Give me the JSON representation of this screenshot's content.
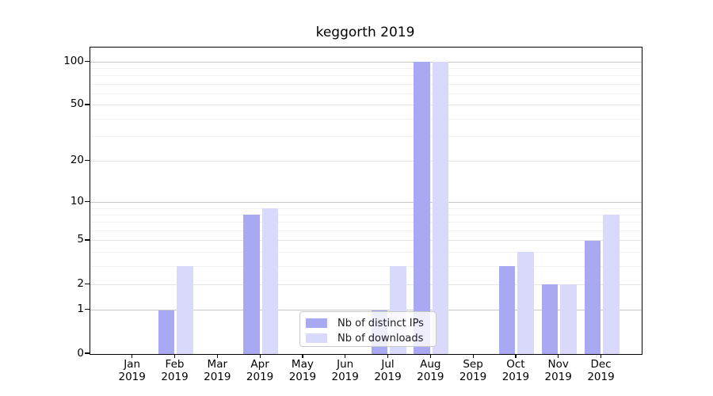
{
  "chart_data": {
    "type": "bar",
    "title": "keggorth 2019",
    "categories": [
      "Jan 2019",
      "Feb 2019",
      "Mar 2019",
      "Apr 2019",
      "May 2019",
      "Jun 2019",
      "Jul 2019",
      "Aug 2019",
      "Sep 2019",
      "Oct 2019",
      "Nov 2019",
      "Dec 2019"
    ],
    "series": [
      {
        "name": "Nb of distinct IPs",
        "color": "#a8a8f3",
        "values": [
          0,
          1,
          0,
          8,
          0,
          0,
          1,
          100,
          0,
          3,
          2,
          5
        ]
      },
      {
        "name": "Nb of downloads",
        "color": "#d9d9fb",
        "values": [
          0,
          3,
          0,
          9,
          0,
          0,
          3,
          100,
          0,
          4,
          2,
          8
        ]
      }
    ],
    "xlabel": "",
    "ylabel": "",
    "yaxis": {
      "scale": "log1p",
      "ticks": [
        0,
        1,
        2,
        5,
        10,
        20,
        50,
        100
      ],
      "minor_gridlines": [
        3,
        4,
        6,
        7,
        8,
        9,
        30,
        40,
        60,
        70,
        80,
        90
      ],
      "ylim": [
        0,
        128
      ]
    },
    "grid": "on",
    "legend_position": "lower center"
  }
}
